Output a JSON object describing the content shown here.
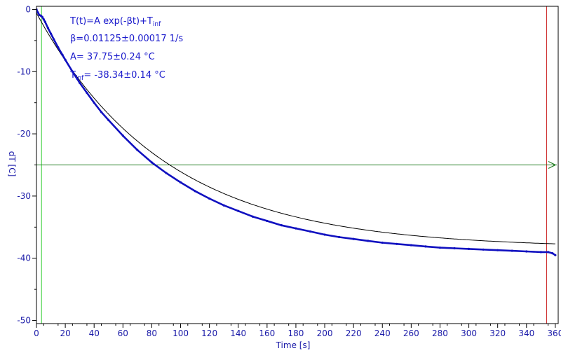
{
  "colors": {
    "axis": "#000000",
    "text": "#1a1acc",
    "data": "#1010c0",
    "fit": "#000000",
    "green_vertical": "#33cc33",
    "green_horizontal": "#1e7a1e",
    "red_vertical": "#cc2222",
    "background": "#ffffff"
  },
  "chart_data": {
    "type": "scatter",
    "title": "",
    "xlabel": "Time [s]",
    "ylabel": "dT [C]",
    "xlim": [
      0,
      362
    ],
    "ylim": [
      -50.5,
      0.5
    ],
    "x_ticks": [
      0,
      20,
      40,
      60,
      80,
      100,
      120,
      140,
      160,
      180,
      200,
      220,
      240,
      260,
      280,
      300,
      320,
      340,
      360
    ],
    "y_ticks": [
      0,
      -10,
      -20,
      -30,
      -40,
      -50
    ],
    "grid": false,
    "fit": {
      "model": "T(t)=A exp(-βt)+T_inf",
      "beta": 0.01125,
      "beta_err": 0.00017,
      "A": 37.75,
      "A_err": 0.24,
      "T_inf": -38.34,
      "T_inf_err": 0.14
    },
    "annotations": {
      "formula": "T(t)=A exp(-βt)+T",
      "formula_sub": "inf",
      "beta": "β=0.01125±0.00017 1/s",
      "A": "A= 37.75±0.24 °C",
      "tinf_prefix": "T",
      "tinf_sub": "inf",
      "tinf_value": "= -38.34±0.14 °C"
    },
    "markers": {
      "green_vertical_x": 3.5,
      "red_vertical_x": 354,
      "horizontal_y": -25
    },
    "series": [
      {
        "x": [
          0,
          1,
          2,
          3,
          4,
          5,
          6,
          8,
          10,
          12,
          15,
          18,
          20,
          25,
          30,
          35,
          40,
          45,
          50,
          60,
          70,
          80,
          90,
          100,
          110,
          120,
          130,
          140,
          150,
          160,
          170,
          180,
          190,
          200,
          210,
          220,
          230,
          240,
          250,
          260,
          270,
          280,
          290,
          300,
          310,
          320,
          330,
          340,
          350,
          355,
          358,
          360
        ],
        "y": [
          0,
          -0.5,
          -0.9,
          -1.0,
          -1.2,
          -1.6,
          -2.0,
          -3.0,
          -3.9,
          -4.8,
          -6.1,
          -7.3,
          -8.1,
          -10.0,
          -11.8,
          -13.4,
          -15.0,
          -16.5,
          -17.8,
          -20.3,
          -22.6,
          -24.6,
          -26.3,
          -27.8,
          -29.2,
          -30.4,
          -31.5,
          -32.4,
          -33.3,
          -34.0,
          -34.7,
          -35.2,
          -35.7,
          -36.2,
          -36.6,
          -36.9,
          -37.2,
          -37.5,
          -37.7,
          -37.9,
          -38.1,
          -38.3,
          -38.4,
          -38.5,
          -38.6,
          -38.7,
          -38.8,
          -38.9,
          -39.0,
          -39.0,
          -39.2,
          -39.5
        ]
      }
    ]
  }
}
